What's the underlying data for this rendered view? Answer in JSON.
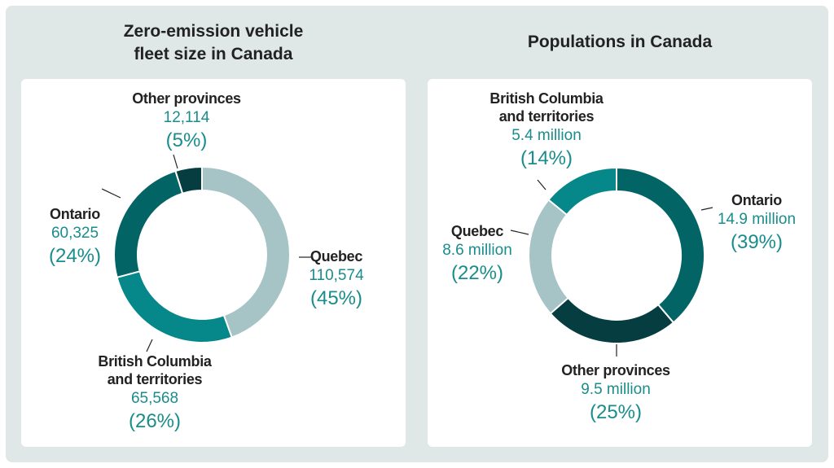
{
  "colors": {
    "quebec": "#a6c3c6",
    "bc": "#06888a",
    "ontario": "#036466",
    "other": "#053d40",
    "value_text": "#1a8c8c",
    "background": "#dfe7e7"
  },
  "chart_data": [
    {
      "type": "pie",
      "donut": true,
      "title": "Zero-emission vehicle fleet size in Canada",
      "slices": [
        {
          "name": "Quebec",
          "value": 110574,
          "value_label": "110,574",
          "percent": 45,
          "percent_label": "(45%)",
          "color": "#a6c3c6"
        },
        {
          "name": "British Columbia and territories",
          "name_lines": [
            "British Columbia",
            "and territories"
          ],
          "value": 65568,
          "value_label": "65,568",
          "percent": 26,
          "percent_label": "(26%)",
          "color": "#06888a"
        },
        {
          "name": "Ontario",
          "value": 60325,
          "value_label": "60,325",
          "percent": 24,
          "percent_label": "(24%)",
          "color": "#036466"
        },
        {
          "name": "Other provinces",
          "value": 12114,
          "value_label": "12,114",
          "percent": 5,
          "percent_label": "(5%)",
          "color": "#053d40"
        }
      ]
    },
    {
      "type": "pie",
      "donut": true,
      "title": "Populations in Canada",
      "slices": [
        {
          "name": "Ontario",
          "value": 14.9,
          "value_label": "14.9 million",
          "percent": 39,
          "percent_label": "(39%)",
          "color": "#036466"
        },
        {
          "name": "Other provinces",
          "value": 9.5,
          "value_label": "9.5 million",
          "percent": 25,
          "percent_label": "(25%)",
          "color": "#053d40"
        },
        {
          "name": "Quebec",
          "value": 8.6,
          "value_label": "8.6 million",
          "percent": 22,
          "percent_label": "(22%)",
          "color": "#a6c3c6"
        },
        {
          "name": "British Columbia and territories",
          "name_lines": [
            "British Columbia",
            "and territories"
          ],
          "value": 5.4,
          "value_label": "5.4 million",
          "percent": 14,
          "percent_label": "(14%)",
          "color": "#06888a"
        }
      ]
    }
  ],
  "titles": {
    "left_lines": [
      "Zero-emission vehicle",
      "fleet size in Canada"
    ],
    "right": "Populations in Canada"
  }
}
